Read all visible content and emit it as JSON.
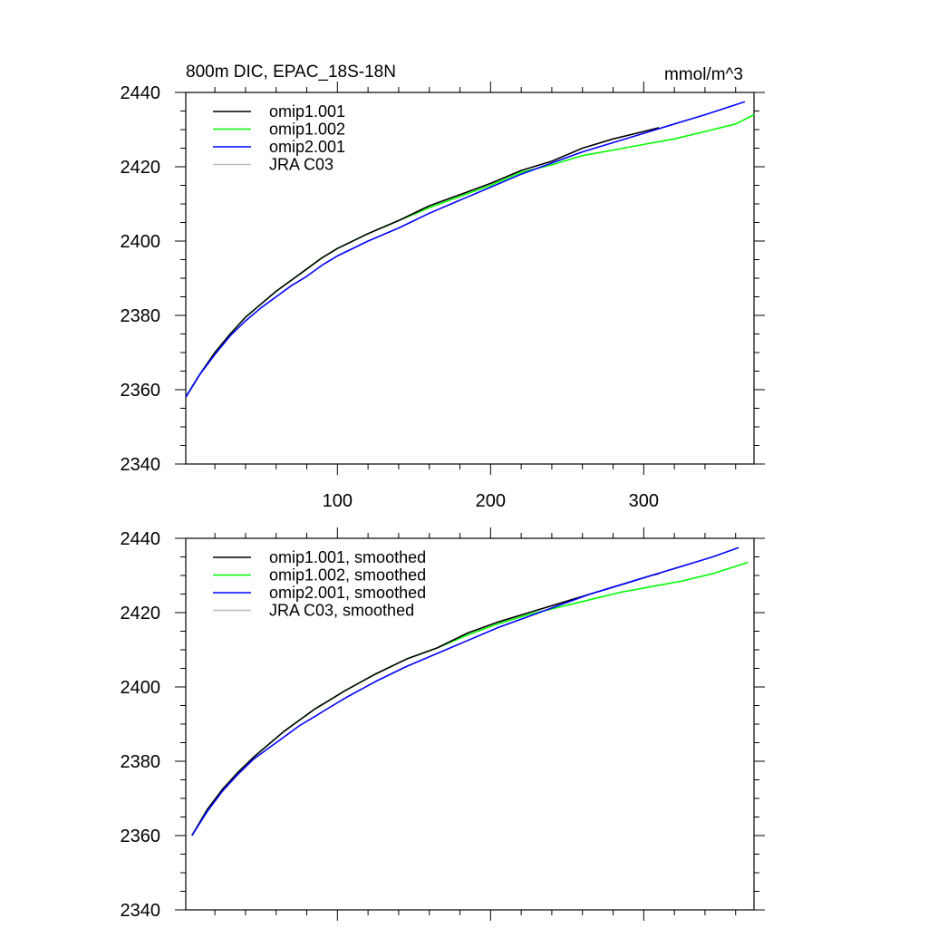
{
  "chart_data": [
    {
      "type": "line",
      "title": "800m DIC, EPAC_18S-18N",
      "units": "mmol/m^3",
      "xlim": [
        1,
        372
      ],
      "ylim": [
        2340,
        2440
      ],
      "x_ticks": [
        100,
        200,
        300
      ],
      "x_tick_labels": [
        "100",
        "200",
        "300"
      ],
      "y_ticks": [
        2340,
        2360,
        2380,
        2400,
        2420,
        2440
      ],
      "y_tick_labels": [
        "2340",
        "2360",
        "2380",
        "2400",
        "2420",
        "2440"
      ],
      "legend_position": "top-left",
      "series": [
        {
          "name": "omip1.001",
          "color": "#000000",
          "x": [
            1,
            10,
            20,
            30,
            40,
            50,
            60,
            70,
            80,
            90,
            100,
            120,
            140,
            160,
            180,
            200,
            220,
            240,
            260,
            280,
            300,
            310
          ],
          "y": [
            2358,
            2364,
            2370,
            2375,
            2379.5,
            2383,
            2386.5,
            2389.5,
            2392.5,
            2395.5,
            2398,
            2402,
            2405.5,
            2409.5,
            2412.5,
            2415.5,
            2419,
            2421.5,
            2425,
            2427.5,
            2429.5,
            2430.5
          ]
        },
        {
          "name": "omip1.002",
          "color": "#00ff00",
          "x": [
            1,
            10,
            20,
            30,
            40,
            50,
            60,
            70,
            80,
            90,
            100,
            120,
            140,
            160,
            180,
            200,
            220,
            240,
            260,
            280,
            300,
            320,
            340,
            360,
            372
          ],
          "y": [
            2358,
            2364,
            2370,
            2375,
            2379.5,
            2383,
            2386.5,
            2389.5,
            2392.5,
            2395.5,
            2398,
            2402,
            2405.5,
            2409,
            2412,
            2415,
            2418.5,
            2420.5,
            2423,
            2424.5,
            2426,
            2427.5,
            2429.5,
            2431.5,
            2434
          ]
        },
        {
          "name": "omip2.001",
          "color": "#0000ff",
          "x": [
            1,
            10,
            20,
            30,
            40,
            50,
            60,
            70,
            80,
            90,
            100,
            120,
            140,
            160,
            180,
            200,
            220,
            240,
            260,
            280,
            300,
            320,
            340,
            366
          ],
          "y": [
            2358,
            2364,
            2369.5,
            2374.5,
            2378.5,
            2382,
            2385,
            2388,
            2390.5,
            2393.5,
            2396,
            2400,
            2403.5,
            2407.5,
            2411,
            2414.5,
            2418,
            2421,
            2424,
            2426.5,
            2429,
            2431.5,
            2434,
            2437.5
          ]
        },
        {
          "name": "JRA C03",
          "color": "#bbbbbb",
          "x": [],
          "y": []
        }
      ]
    },
    {
      "type": "line",
      "title": "",
      "xlim": [
        1,
        372
      ],
      "ylim": [
        2340,
        2440
      ],
      "x_ticks": [
        100,
        200,
        300
      ],
      "x_tick_labels": [],
      "y_ticks": [
        2340,
        2360,
        2380,
        2400,
        2420,
        2440
      ],
      "y_tick_labels": [
        "2340",
        "2360",
        "2380",
        "2400",
        "2420",
        "2440"
      ],
      "legend_position": "top-left",
      "series": [
        {
          "name": "omip1.001, smoothed",
          "color": "#000000",
          "x": [
            5,
            15,
            25,
            35,
            45,
            55,
            65,
            75,
            85,
            95,
            105,
            125,
            145,
            165,
            185,
            205,
            225,
            245,
            265,
            285,
            305,
            310
          ],
          "y": [
            2360,
            2367,
            2372.5,
            2377,
            2381,
            2384.5,
            2388,
            2391,
            2394,
            2396.5,
            2399,
            2403.5,
            2407.5,
            2410.5,
            2414.5,
            2417.5,
            2420,
            2422.5,
            2425,
            2427.5,
            2430,
            2430.5
          ]
        },
        {
          "name": "omip1.002, smoothed",
          "color": "#00ff00",
          "x": [
            5,
            15,
            25,
            35,
            45,
            55,
            65,
            75,
            85,
            95,
            105,
            125,
            145,
            165,
            185,
            205,
            225,
            245,
            265,
            285,
            305,
            325,
            345,
            368
          ],
          "y": [
            2360,
            2367,
            2372.5,
            2377,
            2381,
            2384.5,
            2388,
            2391,
            2394,
            2396.5,
            2399,
            2403.5,
            2407.5,
            2410.5,
            2414,
            2417,
            2419.5,
            2421.5,
            2423.5,
            2425.5,
            2427,
            2428.5,
            2430.5,
            2433.5
          ]
        },
        {
          "name": "omip2.001, smoothed",
          "color": "#0000ff",
          "x": [
            5,
            15,
            25,
            35,
            45,
            55,
            65,
            75,
            85,
            95,
            105,
            125,
            145,
            165,
            185,
            205,
            225,
            245,
            265,
            285,
            305,
            325,
            345,
            362
          ],
          "y": [
            2360,
            2366.5,
            2372,
            2376.5,
            2380.5,
            2383.5,
            2386.5,
            2389.5,
            2392,
            2394.5,
            2397,
            2401.5,
            2405.5,
            2409,
            2412.5,
            2416,
            2419,
            2422,
            2425,
            2427.5,
            2430,
            2432.5,
            2435,
            2437.5
          ]
        },
        {
          "name": "JRA C03, smoothed",
          "color": "#bbbbbb",
          "x": [],
          "y": []
        }
      ]
    }
  ]
}
